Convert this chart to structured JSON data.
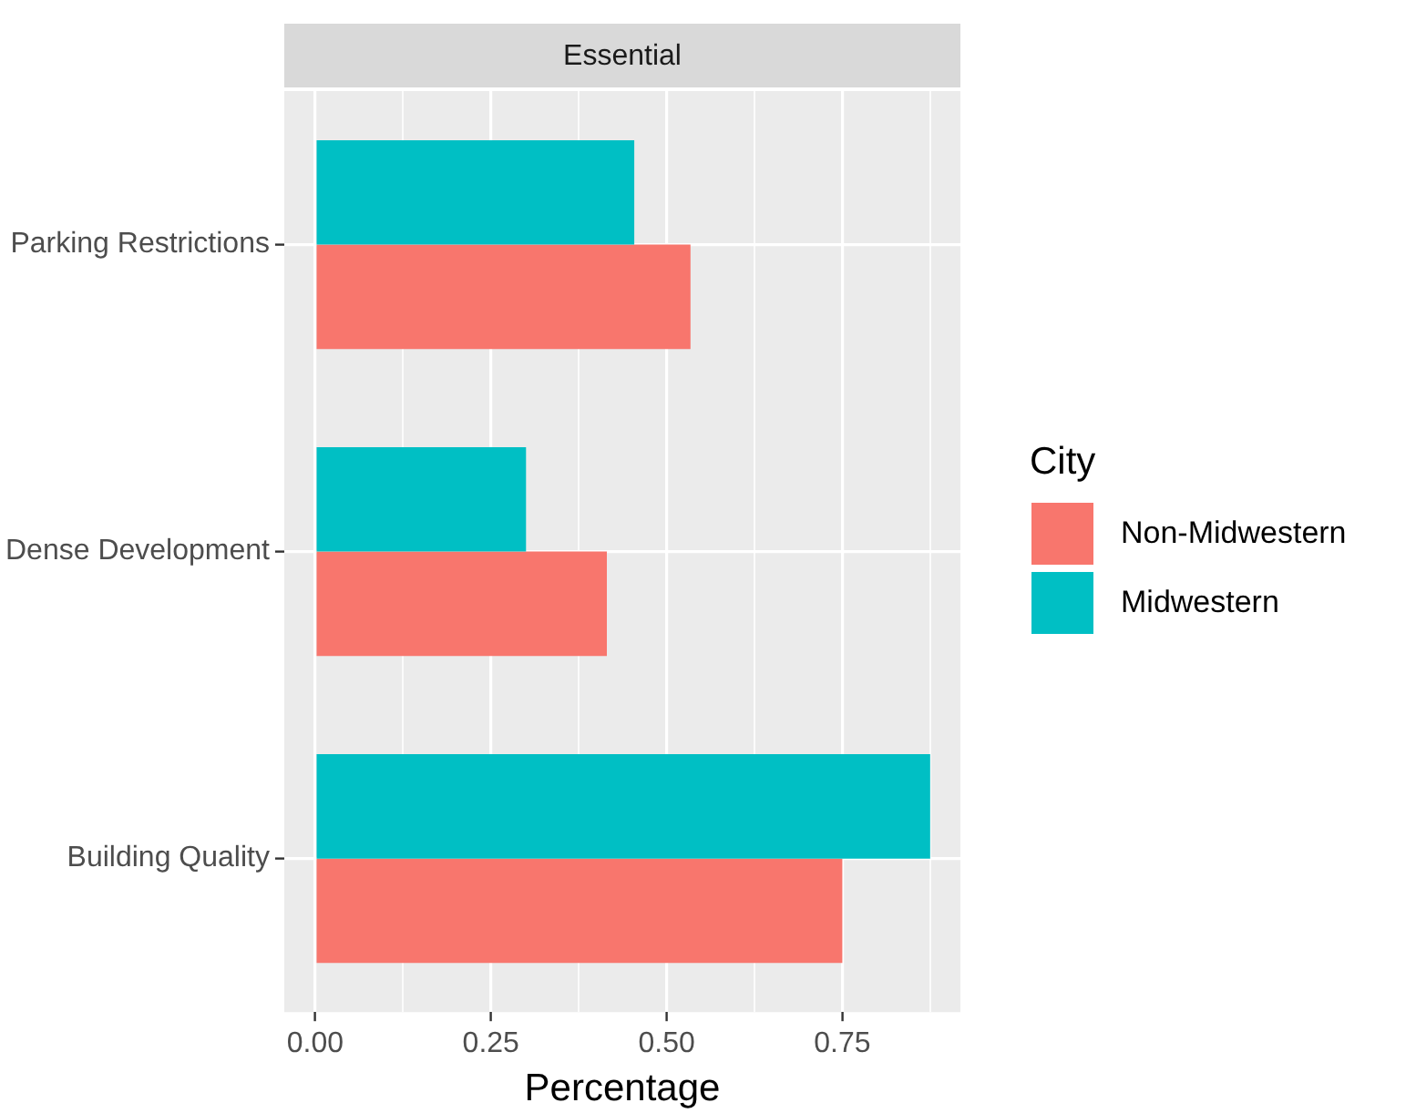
{
  "chart_data": {
    "type": "bar",
    "orientation": "horizontal",
    "title": "Essential",
    "xlabel": "Percentage",
    "legend_title": "City",
    "legend": "right",
    "grid": true,
    "categories": [
      "Parking Restrictions",
      "Dense Development",
      "Building Quality"
    ],
    "series": [
      {
        "name": "Non-Midwestern",
        "color": "#f8766d",
        "values": [
          0.534,
          0.415,
          0.75
        ]
      },
      {
        "name": "Midwestern",
        "color": "#00bfc4",
        "values": [
          0.454,
          0.3,
          0.875
        ]
      }
    ],
    "xlim": [
      -0.044,
      0.918
    ],
    "xticks": [
      {
        "value": 0,
        "label": "0.00"
      },
      {
        "value": 0.125,
        "label": null
      },
      {
        "value": 0.25,
        "label": "0.25"
      },
      {
        "value": 0.375,
        "label": null
      },
      {
        "value": 0.5,
        "label": "0.50"
      },
      {
        "value": 0.625,
        "label": null
      },
      {
        "value": 0.75,
        "label": "0.75"
      },
      {
        "value": 0.875,
        "label": null
      }
    ]
  }
}
